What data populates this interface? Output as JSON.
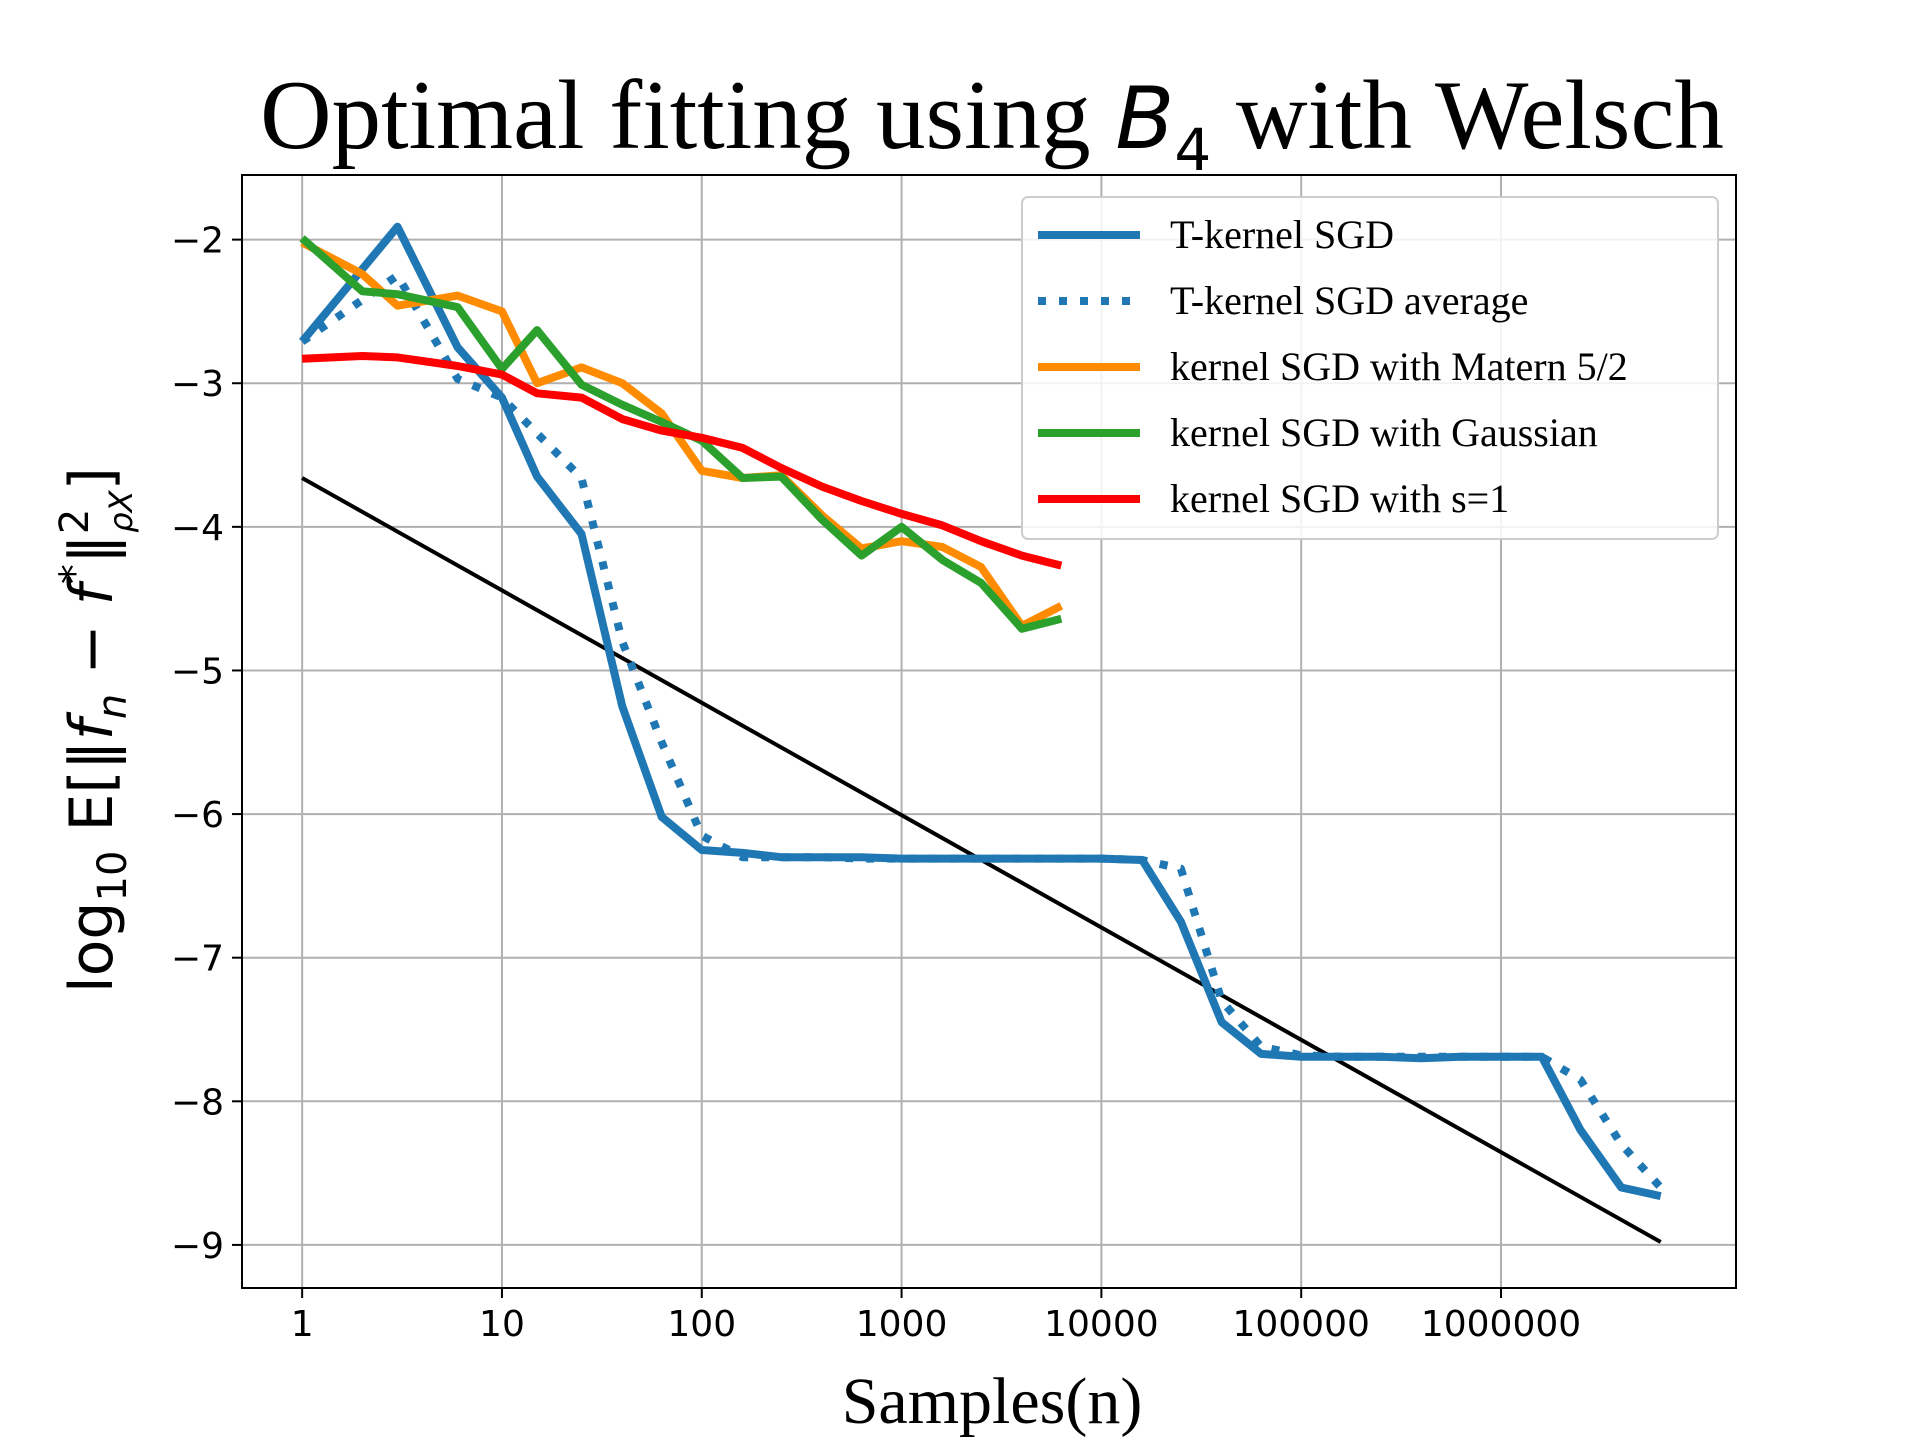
{
  "chart_data": {
    "type": "line",
    "title": {
      "prefix": "Optimal fitting using ",
      "sym": "B",
      "sub": "4",
      "suffix": " with Welsch"
    },
    "xlabel": "Samples(n)",
    "ylabel": {
      "pre": "log",
      "sub": "10",
      "mid": " E[‖",
      "f": "f",
      "fsub": "n",
      "minus": " − ",
      "fstar": "f",
      "star": "*",
      "norm": "‖",
      "nsup": "2",
      "nsub": "ρX",
      "close": "]"
    },
    "x_scale": "log",
    "xlim": [
      0.5,
      15000000
    ],
    "ylim": [
      -9.3,
      -1.55
    ],
    "x_ticks": [
      {
        "value": 1,
        "label": "1"
      },
      {
        "value": 10,
        "label": "10"
      },
      {
        "value": 100,
        "label": "100"
      },
      {
        "value": 1000,
        "label": "1000"
      },
      {
        "value": 10000,
        "label": "10000"
      },
      {
        "value": 100000,
        "label": "100000"
      },
      {
        "value": 1000000,
        "label": "1000000"
      }
    ],
    "y_ticks": [
      {
        "value": -2,
        "label": "−2"
      },
      {
        "value": -3,
        "label": "−3"
      },
      {
        "value": -4,
        "label": "−4"
      },
      {
        "value": -5,
        "label": "−5"
      },
      {
        "value": -6,
        "label": "−6"
      },
      {
        "value": -7,
        "label": "−7"
      },
      {
        "value": -8,
        "label": "−8"
      },
      {
        "value": -9,
        "label": "−9"
      }
    ],
    "grid": true,
    "legend_position": "top-right",
    "series": [
      {
        "name": "T-kernel SGD",
        "color": "#1f77b4",
        "style": "solid",
        "x": [
          1,
          3,
          6,
          10,
          15,
          25,
          40,
          63,
          100,
          160,
          250,
          400,
          630,
          1000,
          1600,
          2500,
          4000,
          6300,
          10000,
          16000,
          25000,
          40000,
          63000,
          100000,
          160000,
          250000,
          400000,
          630000,
          1000000,
          1600000,
          2500000,
          4000000,
          6300000
        ],
        "y": [
          -2.71,
          -1.91,
          -2.75,
          -3.1,
          -3.65,
          -4.05,
          -5.25,
          -6.02,
          -6.25,
          -6.27,
          -6.3,
          -6.3,
          -6.3,
          -6.31,
          -6.31,
          -6.31,
          -6.31,
          -6.31,
          -6.31,
          -6.32,
          -6.75,
          -7.45,
          -7.67,
          -7.69,
          -7.69,
          -7.69,
          -7.7,
          -7.69,
          -7.69,
          -7.69,
          -8.2,
          -8.6,
          -8.66
        ]
      },
      {
        "name": "T-kernel SGD average",
        "color": "#1f77b4",
        "style": "dotted",
        "x": [
          1,
          3,
          6,
          10,
          15,
          25,
          40,
          63,
          100,
          160,
          250,
          400,
          630,
          1000,
          1600,
          2500,
          4000,
          6300,
          10000,
          16000,
          25000,
          40000,
          63000,
          100000,
          160000,
          250000,
          400000,
          630000,
          1000000,
          1600000,
          2500000,
          4000000,
          6300000
        ],
        "y": [
          -2.71,
          -2.25,
          -2.97,
          -3.1,
          -3.35,
          -3.66,
          -4.8,
          -5.5,
          -6.15,
          -6.3,
          -6.3,
          -6.3,
          -6.31,
          -6.31,
          -6.31,
          -6.31,
          -6.31,
          -6.31,
          -6.31,
          -6.32,
          -6.38,
          -7.3,
          -7.62,
          -7.68,
          -7.69,
          -7.69,
          -7.69,
          -7.69,
          -7.69,
          -7.69,
          -7.85,
          -8.3,
          -8.6
        ]
      },
      {
        "name": "kernel SGD with Matern 5/2",
        "color": "#ff8c00",
        "style": "solid",
        "x": [
          1,
          2,
          3,
          6,
          10,
          15,
          25,
          40,
          63,
          100,
          160,
          250,
          400,
          630,
          1000,
          1600,
          2500,
          4000,
          6300
        ],
        "y": [
          -2.02,
          -2.24,
          -2.46,
          -2.39,
          -2.5,
          -3.0,
          -2.89,
          -3.0,
          -3.21,
          -3.61,
          -3.66,
          -3.64,
          -3.92,
          -4.15,
          -4.1,
          -4.14,
          -4.28,
          -4.69,
          -4.55
        ]
      },
      {
        "name": "kernel SGD with Gaussian",
        "color": "#2ca02c",
        "style": "solid",
        "x": [
          1,
          2,
          3,
          6,
          10,
          15,
          25,
          40,
          63,
          100,
          160,
          250,
          400,
          630,
          1000,
          1600,
          2500,
          4000,
          6300
        ],
        "y": [
          -1.99,
          -2.36,
          -2.38,
          -2.47,
          -2.9,
          -2.63,
          -3.01,
          -3.15,
          -3.27,
          -3.4,
          -3.66,
          -3.65,
          -3.95,
          -4.2,
          -4.0,
          -4.23,
          -4.39,
          -4.71,
          -4.64
        ]
      },
      {
        "name": "kernel SGD with s=1",
        "color": "#ff0000",
        "style": "solid",
        "x": [
          1,
          2,
          3,
          6,
          10,
          15,
          25,
          40,
          63,
          100,
          160,
          250,
          400,
          630,
          1000,
          1600,
          2500,
          4000,
          6300
        ],
        "y": [
          -2.83,
          -2.81,
          -2.82,
          -2.88,
          -2.94,
          -3.07,
          -3.1,
          -3.25,
          -3.33,
          -3.38,
          -3.45,
          -3.59,
          -3.72,
          -3.82,
          -3.91,
          -3.99,
          -4.1,
          -4.2,
          -4.27
        ]
      },
      {
        "name": "",
        "color": "#000000",
        "style": "solid",
        "x": [
          1,
          6300000
        ],
        "y": [
          -3.66,
          -8.98
        ]
      }
    ]
  }
}
